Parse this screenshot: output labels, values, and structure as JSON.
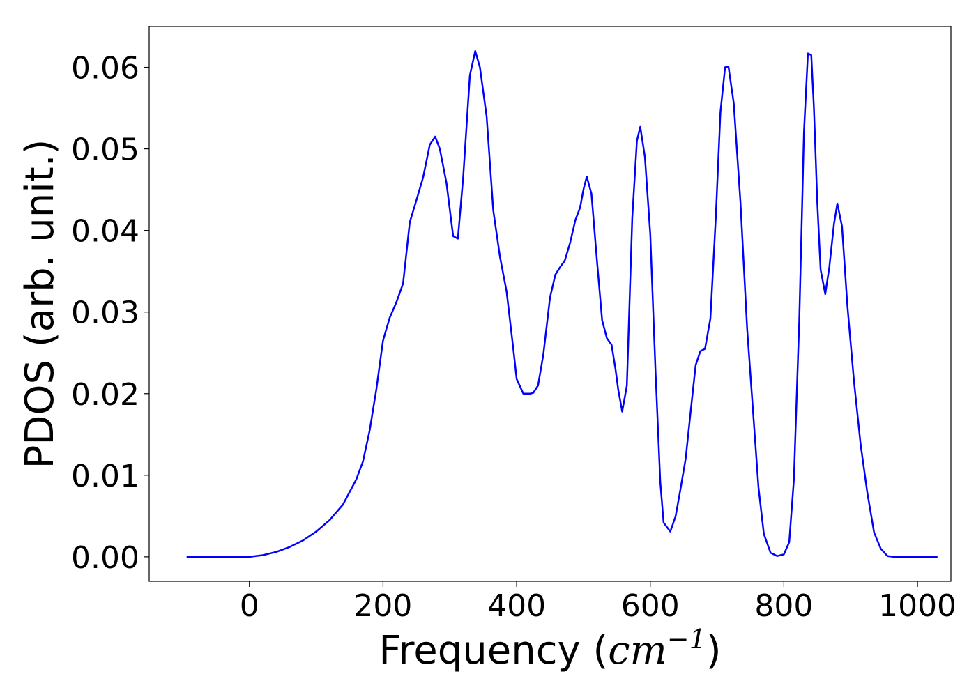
{
  "chart_data": {
    "type": "line",
    "xlabel_text": "Frequency (",
    "xlabel_unit_base": "cm",
    "xlabel_unit_exp": "−1",
    "xlabel_close": ")",
    "ylabel": "PDOS (arb. unit.)",
    "xlim": [
      -150,
      1050
    ],
    "ylim": [
      -0.003,
      0.065
    ],
    "xticks": [
      0,
      200,
      400,
      600,
      800,
      1000
    ],
    "xtick_labels": [
      "0",
      "200",
      "400",
      "600",
      "800",
      "1000"
    ],
    "yticks": [
      0.0,
      0.01,
      0.02,
      0.03,
      0.04,
      0.05,
      0.06
    ],
    "ytick_labels": [
      "0.00",
      "0.01",
      "0.02",
      "0.03",
      "0.04",
      "0.05",
      "0.06"
    ],
    "grid": false,
    "series": [
      {
        "color": "#0000ff",
        "x": [
          -94,
          0,
          20,
          40,
          60,
          80,
          100,
          120,
          140,
          160,
          170,
          180,
          190,
          200,
          210,
          220,
          230,
          240,
          250,
          260,
          270,
          278,
          285,
          295,
          305,
          312,
          320,
          330,
          338,
          345,
          355,
          365,
          375,
          385,
          395,
          400,
          410,
          420,
          425,
          432,
          440,
          450,
          458,
          465,
          472,
          480,
          488,
          495,
          500,
          505,
          512,
          520,
          528,
          535,
          542,
          548,
          552,
          558,
          565,
          573,
          580,
          585,
          592,
          600,
          608,
          615,
          620,
          630,
          638,
          645,
          653,
          660,
          668,
          675,
          682,
          690,
          698,
          705,
          712,
          717,
          725,
          735,
          745,
          755,
          762,
          770,
          780,
          790,
          800,
          808,
          815,
          823,
          830,
          836,
          841,
          845,
          850,
          855,
          862,
          868,
          875,
          880,
          887,
          895,
          905,
          915,
          925,
          935,
          945,
          955,
          965,
          1030
        ],
        "y": [
          0,
          0,
          0.0002,
          0.0006,
          0.0012,
          0.002,
          0.0031,
          0.0045,
          0.0064,
          0.0095,
          0.0117,
          0.0155,
          0.0205,
          0.0265,
          0.0293,
          0.0312,
          0.0335,
          0.041,
          0.0437,
          0.0465,
          0.0505,
          0.0515,
          0.05,
          0.0458,
          0.0393,
          0.039,
          0.0465,
          0.059,
          0.062,
          0.06,
          0.054,
          0.0425,
          0.0368,
          0.0325,
          0.0255,
          0.0218,
          0.02,
          0.02,
          0.0201,
          0.021,
          0.0248,
          0.0318,
          0.0346,
          0.0355,
          0.0363,
          0.0385,
          0.0413,
          0.0428,
          0.045,
          0.0466,
          0.0445,
          0.0365,
          0.029,
          0.0268,
          0.026,
          0.023,
          0.0205,
          0.0178,
          0.021,
          0.0415,
          0.051,
          0.0527,
          0.049,
          0.0395,
          0.0225,
          0.0092,
          0.0042,
          0.0031,
          0.005,
          0.0082,
          0.012,
          0.0175,
          0.0235,
          0.0252,
          0.0255,
          0.0292,
          0.0415,
          0.0545,
          0.06,
          0.0601,
          0.0556,
          0.0435,
          0.028,
          0.0165,
          0.0085,
          0.0028,
          0.0005,
          0.0001,
          0.0003,
          0.0018,
          0.0095,
          0.029,
          0.052,
          0.0617,
          0.0615,
          0.055,
          0.0435,
          0.0352,
          0.0322,
          0.0355,
          0.0408,
          0.0433,
          0.0405,
          0.0308,
          0.0215,
          0.0137,
          0.0078,
          0.003,
          0.001,
          0.0001,
          0,
          0
        ]
      }
    ]
  }
}
